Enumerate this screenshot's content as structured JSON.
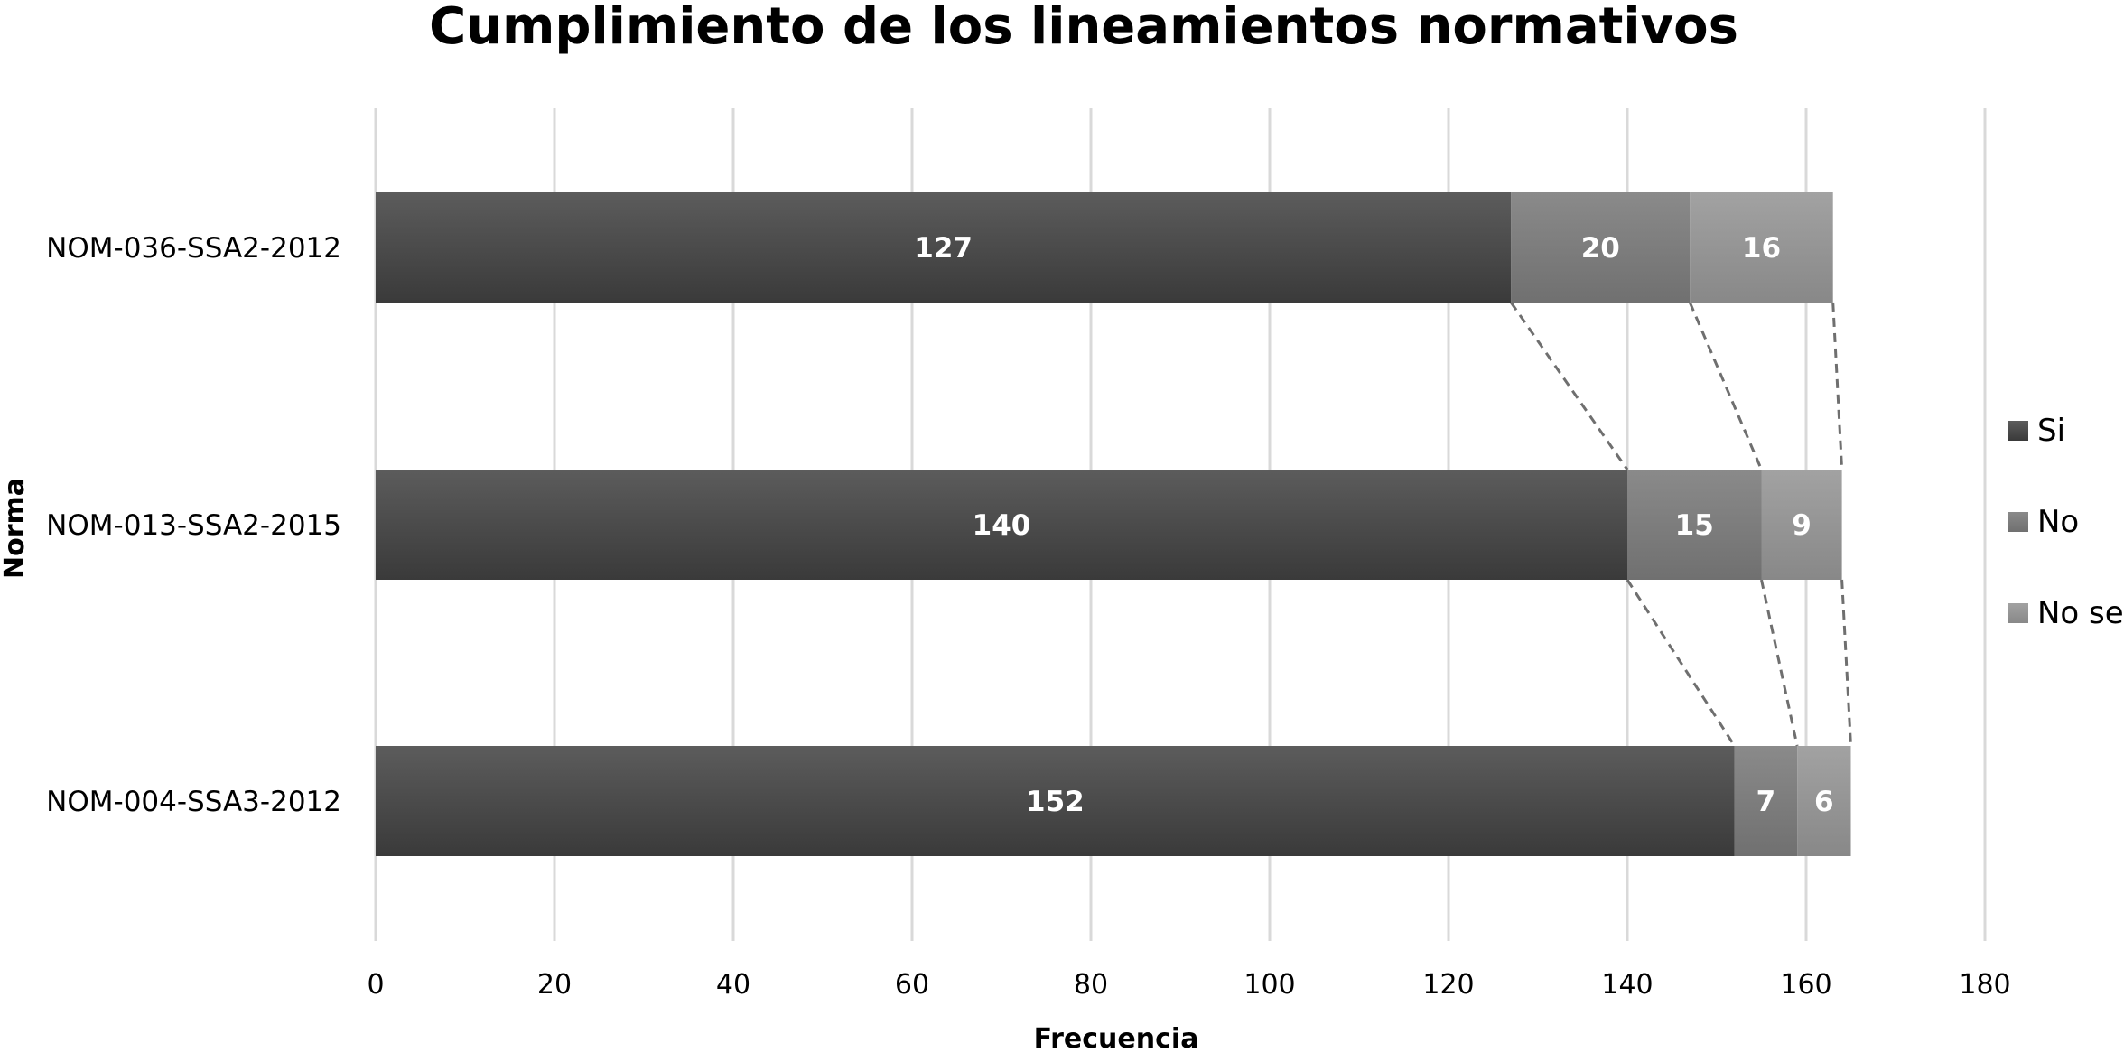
{
  "chart_data": {
    "type": "bar",
    "orientation": "horizontal",
    "stacked": true,
    "title": "Cumplimiento de los lineamientos normativos",
    "xlabel": "Frecuencia",
    "ylabel": "Norma",
    "xlim": [
      0,
      180
    ],
    "xticks": [
      0,
      20,
      40,
      60,
      80,
      100,
      120,
      140,
      160,
      180
    ],
    "grid": "vertical",
    "legend_position": "right",
    "series_lines": true,
    "categories": [
      "NOM-036-SSA2-2012",
      "NOM-013-SSA2-2015",
      "NOM-004-SSA3-2012"
    ],
    "series": [
      {
        "name": "Si",
        "values": [
          127,
          140,
          152
        ],
        "color": "#4a4a4a"
      },
      {
        "name": "No",
        "values": [
          20,
          15,
          7
        ],
        "color": "#7e7e7e"
      },
      {
        "name": "No se",
        "values": [
          16,
          9,
          6
        ],
        "color": "#969696"
      }
    ]
  }
}
